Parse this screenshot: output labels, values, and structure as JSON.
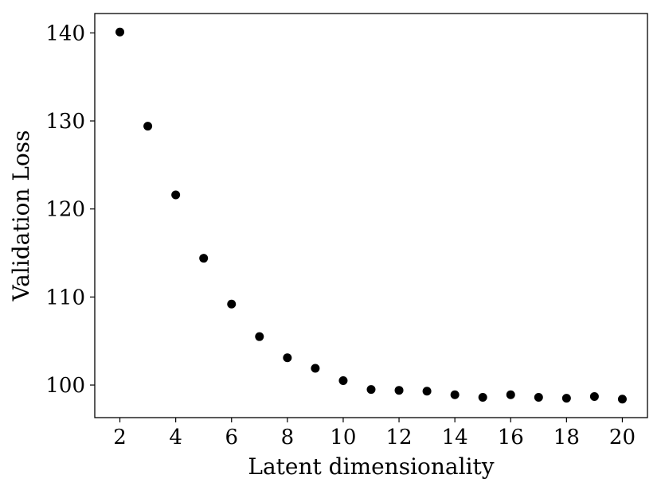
{
  "chart_data": {
    "type": "scatter",
    "x_label": "Latent dimensionality",
    "y_label": "Validation Loss",
    "x": [
      2,
      3,
      4,
      5,
      6,
      7,
      8,
      9,
      10,
      11,
      12,
      13,
      14,
      15,
      16,
      17,
      18,
      19,
      20
    ],
    "values": [
      140.1,
      129.4,
      121.6,
      114.4,
      109.2,
      105.5,
      103.1,
      101.9,
      100.5,
      99.5,
      99.4,
      99.3,
      98.9,
      98.6,
      98.9,
      98.6,
      98.5,
      98.7,
      98.4
    ],
    "color": "#000000",
    "xlim": [
      1.1,
      20.9
    ],
    "xticks": [
      2,
      4,
      6,
      8,
      10,
      12,
      14,
      16,
      18,
      20
    ],
    "ylim": [
      96.3,
      142.2
    ],
    "yticks": [
      100,
      110,
      120,
      130,
      140
    ],
    "grid": false
  }
}
